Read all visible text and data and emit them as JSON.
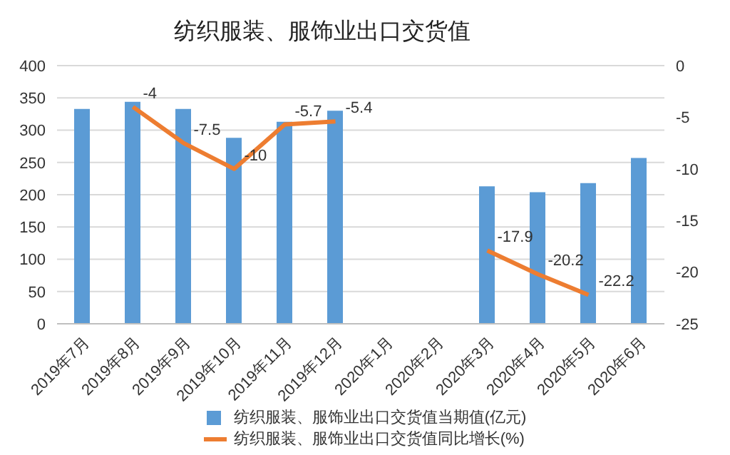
{
  "chart_data": {
    "type": "bar",
    "title": "纺织服装、服饰业出口交货值",
    "categories": [
      "2019年7月",
      "2019年8月",
      "2019年9月",
      "2019年10月",
      "2019年11月",
      "2019年12月",
      "2020年1月",
      "2020年2月",
      "2020年3月",
      "2020年4月",
      "2020年5月",
      "2020年6月"
    ],
    "series": [
      {
        "name": "纺织服装、服饰业出口交货值当期值(亿元)",
        "color": "#5b9bd5",
        "values": [
          333,
          344,
          333,
          288,
          313,
          330,
          null,
          null,
          213,
          204,
          218,
          257
        ]
      },
      {
        "name": "纺织服装、服饰业出口交货值同比增长(%)",
        "type": "line",
        "axis": "y2",
        "color": "#ed7d31",
        "values": [
          null,
          -4,
          -7.5,
          -10,
          -5.7,
          -5.4,
          null,
          null,
          -17.9,
          -20.2,
          -22.2,
          null
        ],
        "value_labels": [
          null,
          "-4",
          "-7.5",
          "-10",
          "-5.7",
          "-5.4",
          null,
          null,
          "-17.9",
          "-20.2",
          "-22.2",
          null
        ]
      }
    ],
    "ylim": [
      0,
      400
    ],
    "yticks": [
      0,
      50,
      100,
      150,
      200,
      250,
      300,
      350,
      400
    ],
    "y2lim": [
      -25,
      0
    ],
    "y2ticks": [
      -25,
      -20,
      -15,
      -10,
      -5,
      0
    ],
    "grid": "y",
    "legend": "bottom",
    "marker": "none",
    "line_style": "solid"
  }
}
